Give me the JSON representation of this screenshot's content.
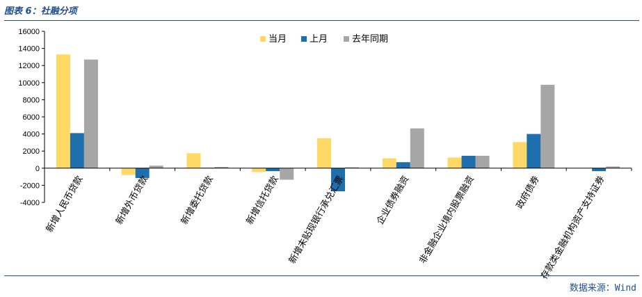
{
  "header": {
    "title": "图表 6：社融分项"
  },
  "footer": {
    "source": "数据来源：Wind"
  },
  "colors": {
    "current": "#ffd966",
    "previous": "#1f6fad",
    "last_year": "#a6a6a6",
    "brand": "#1f4e8c"
  },
  "chart_data": {
    "type": "bar",
    "categories": [
      "新增人民币贷款",
      "新增外币贷款",
      "新增委托贷款",
      "新增信托贷款",
      "新增未贴现银行承兑汇票",
      "企业债券融资",
      "非金融企业境内股票融资",
      "政府债券",
      "存款类金融机构资产支持证券"
    ],
    "series": [
      {
        "name": "当月",
        "values": [
          13300,
          -800,
          1750,
          -450,
          3500,
          1150,
          1250,
          3050,
          0
        ]
      },
      {
        "name": "上月",
        "values": [
          4100,
          -1150,
          50,
          -350,
          -2700,
          700,
          1450,
          4000,
          -350
        ]
      },
      {
        "name": "去年同期",
        "values": [
          12700,
          300,
          150,
          -1350,
          100,
          4650,
          1450,
          9750,
          200
        ]
      }
    ],
    "ylim": [
      -4000,
      16000
    ],
    "yticks": [
      -4000,
      -2000,
      0,
      2000,
      4000,
      6000,
      8000,
      10000,
      12000,
      14000,
      16000
    ],
    "legend_position": "top-center",
    "grid": false
  }
}
